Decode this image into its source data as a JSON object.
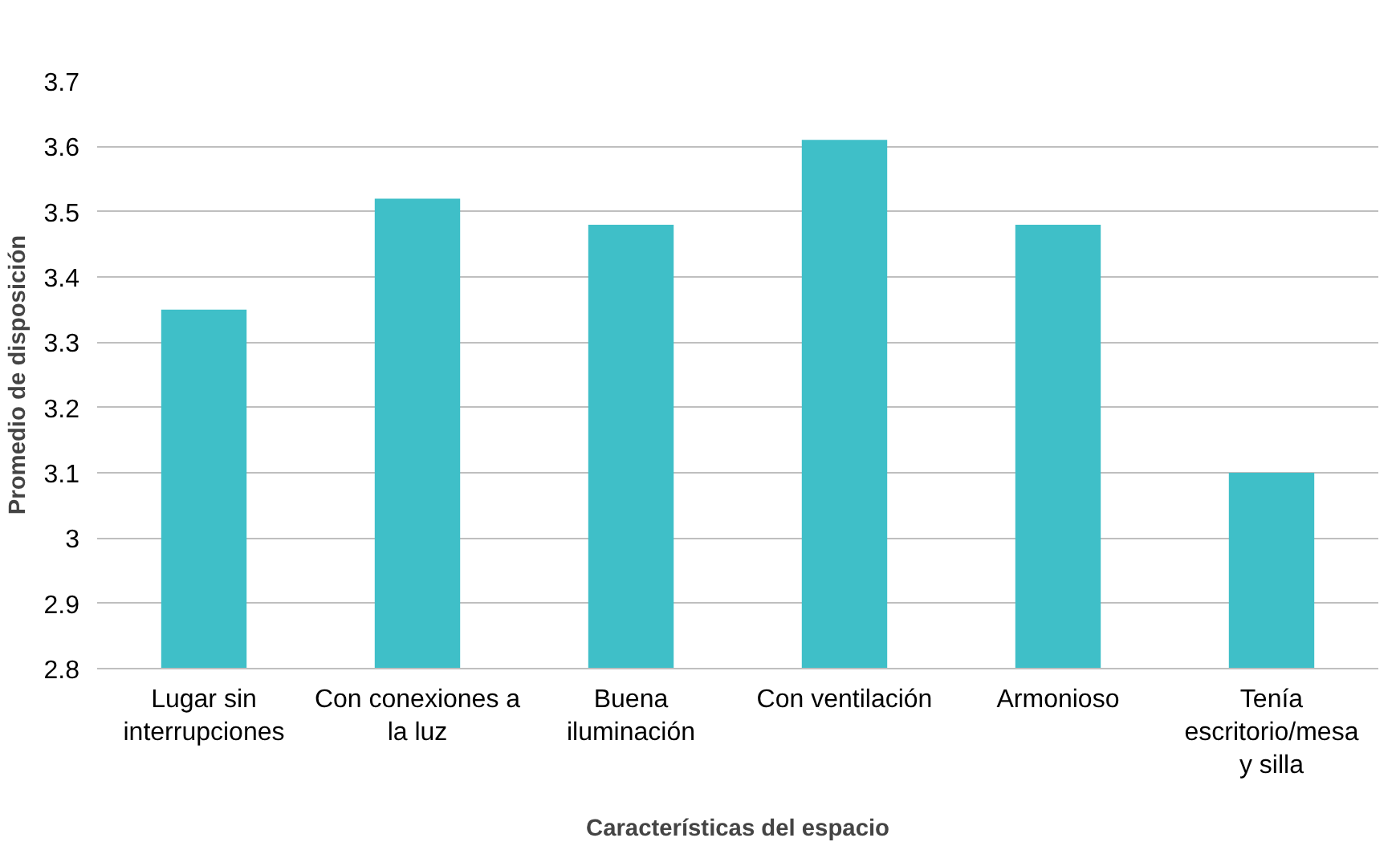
{
  "chart_data": {
    "type": "bar",
    "xlabel": "Características del espacio",
    "ylabel": "Promedio de disposición",
    "categories": [
      "Lugar sin interrupciones",
      "Con conexiones a la luz",
      "Buena iluminación",
      "Con ventilación",
      "Armonioso",
      "Tenía escritorio/mesa y silla"
    ],
    "values": [
      3.35,
      3.52,
      3.48,
      3.61,
      3.48,
      3.1
    ],
    "color": "#3fbfc8",
    "ylim": [
      2.8,
      3.7
    ],
    "yticks": [
      2.8,
      2.9,
      3,
      3.1,
      3.2,
      3.3,
      3.4,
      3.5,
      3.6,
      3.7
    ],
    "grid": "y"
  }
}
